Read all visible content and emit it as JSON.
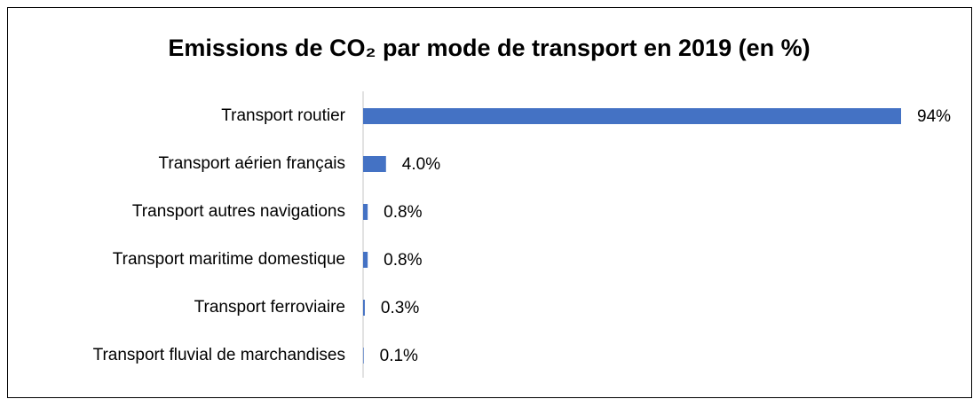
{
  "chart_data": {
    "type": "bar",
    "orientation": "horizontal",
    "title": "Emissions de CO₂ par mode de transport en 2019 (en %)",
    "categories": [
      "Transport routier",
      "Transport aérien français",
      "Transport autres navigations",
      "Transport maritime domestique",
      "Transport ferroviaire",
      "Transport fluvial de marchandises"
    ],
    "values": [
      94,
      4.0,
      0.8,
      0.8,
      0.3,
      0.1
    ],
    "value_labels": [
      "94%",
      "4.0%",
      "0.8%",
      "0.8%",
      "0.3%",
      "0.1%"
    ],
    "color": "#4472c4"
  }
}
